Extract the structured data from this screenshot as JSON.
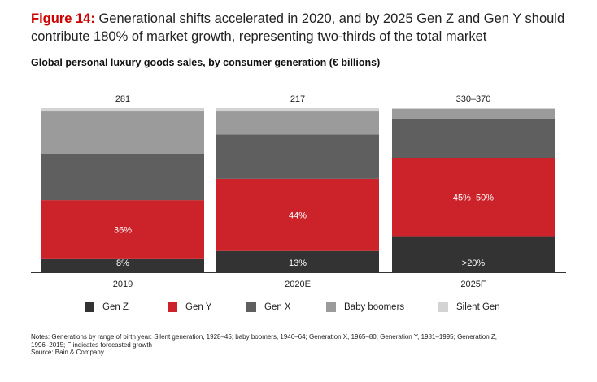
{
  "figure": {
    "label": "Figure 14:",
    "title": "Generational shifts accelerated in 2020, and by 2025 Gen Z and Gen Y should contribute 180% of market growth, representing two-thirds of the total market",
    "subtitle": "Global personal luxury goods sales, by consumer generation (€ billions)"
  },
  "chart_data": {
    "type": "bar",
    "stacked": true,
    "normalized": true,
    "categories": [
      "2019",
      "2020E",
      "2025F"
    ],
    "totals": [
      "281",
      "217",
      "330–370"
    ],
    "series": [
      {
        "name": "Gen Z",
        "color": "#333333",
        "values": [
          8,
          13,
          22
        ],
        "labels": [
          "8%",
          "13%",
          ">20%"
        ]
      },
      {
        "name": "Gen Y",
        "color": "#cc2229",
        "values": [
          36,
          44,
          47.5
        ],
        "labels": [
          "36%",
          "44%",
          "45%–50%"
        ]
      },
      {
        "name": "Gen X",
        "color": "#5f5f5f",
        "values": [
          28,
          27,
          24
        ],
        "labels": [
          "",
          "",
          ""
        ]
      },
      {
        "name": "Baby boomers",
        "color": "#9b9b9b",
        "values": [
          26,
          14,
          6
        ],
        "labels": [
          "",
          "",
          ""
        ]
      },
      {
        "name": "Silent Gen",
        "color": "#d3d3d3",
        "values": [
          2,
          2,
          0.5
        ],
        "labels": [
          "",
          "",
          ""
        ]
      }
    ],
    "ylim": [
      0,
      100
    ],
    "legend_position": "bottom"
  },
  "notes": {
    "line1": "Notes: Generations by range of birth year: Silent generation, 1928–45; baby boomers, 1946–64; Generation X, 1965–80; Generation Y, 1981–1995; Generation Z,",
    "line2": "1996–2015; F indicates forecasted growth",
    "source": "Source: Bain & Company"
  }
}
